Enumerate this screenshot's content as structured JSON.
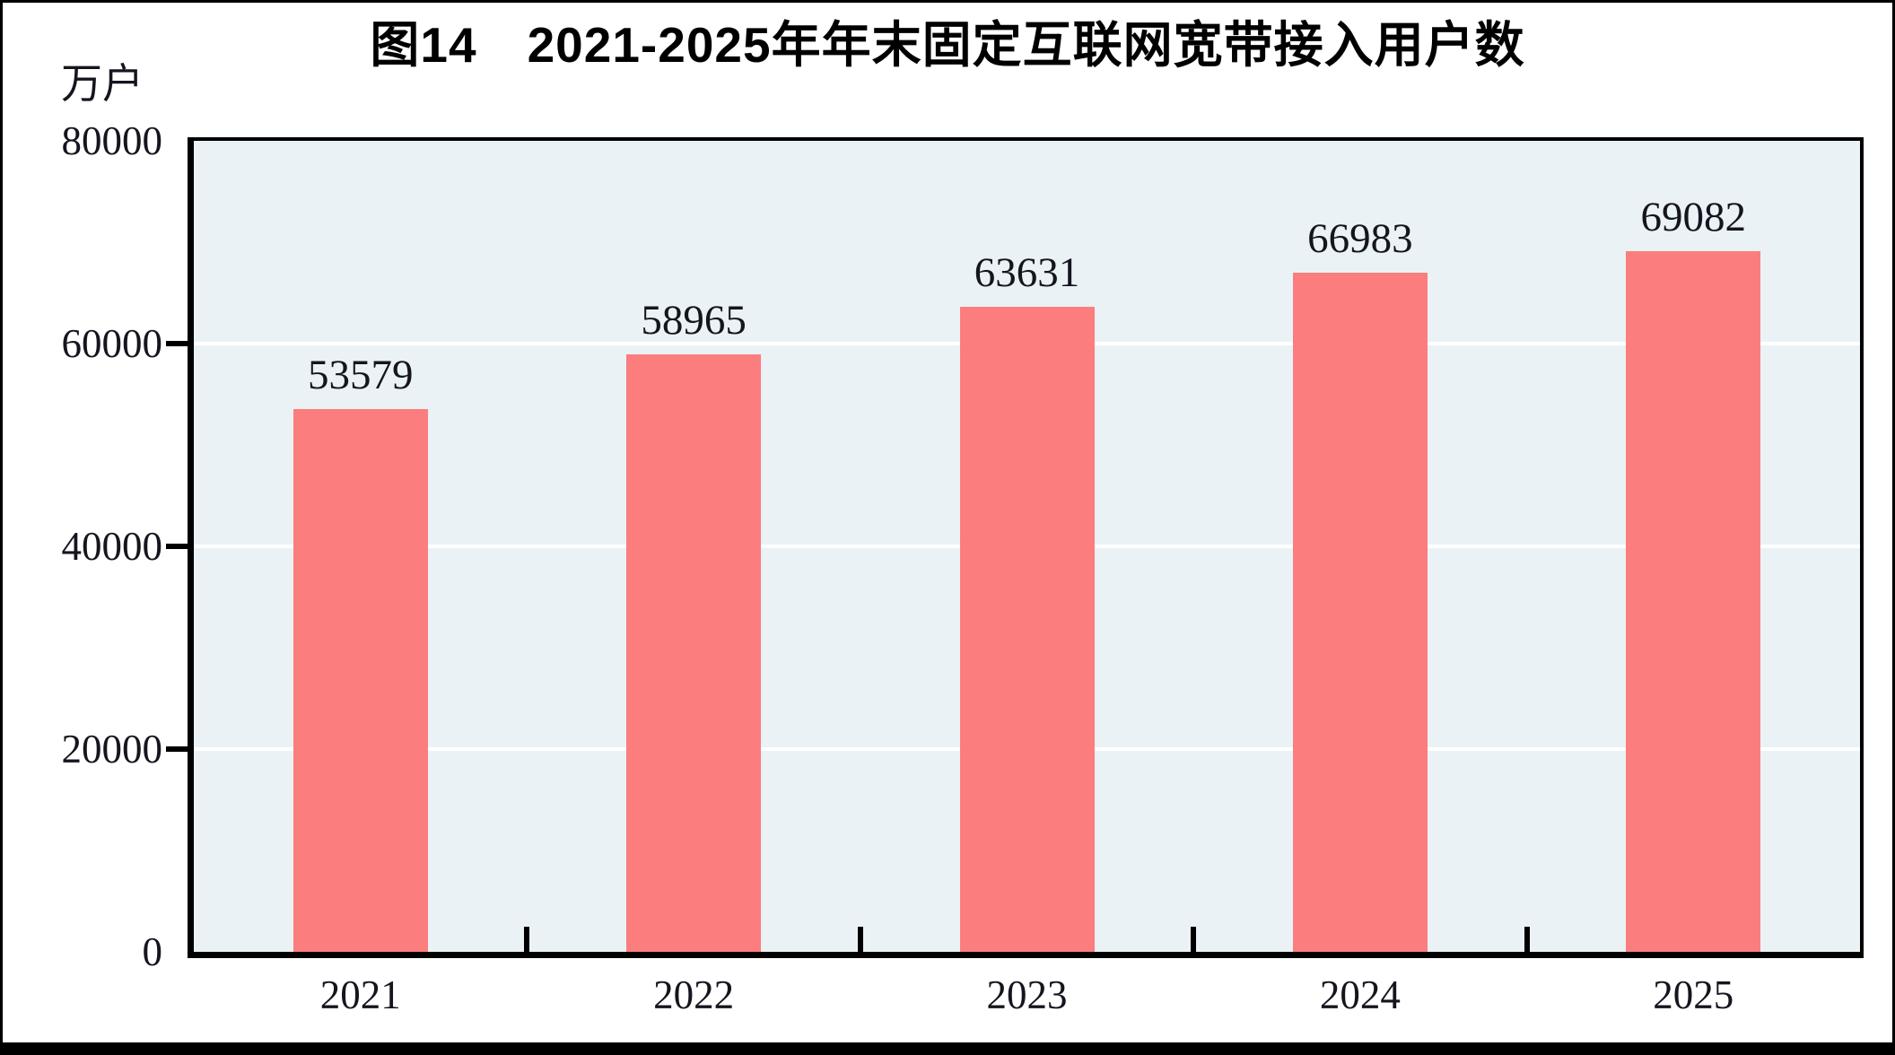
{
  "page": {
    "figure_label": "图14"
  },
  "chart_data": {
    "type": "bar",
    "title": "图14　2021-2025年年末固定互联网宽带接入用户数",
    "categories": [
      "2021",
      "2022",
      "2023",
      "2024",
      "2025"
    ],
    "values": [
      53579,
      58965,
      63631,
      66983,
      69082
    ],
    "value_labels": [
      "53579",
      "58965",
      "63631",
      "66983",
      "69082"
    ],
    "xlabel": "",
    "ylabel": "万户",
    "ylim": [
      0,
      80000
    ],
    "yticks": [
      0,
      20000,
      40000,
      60000,
      80000
    ],
    "ytick_labels": [
      "0",
      "20000",
      "40000",
      "60000",
      "80000"
    ],
    "grid": true,
    "gridline_values": [
      20000,
      40000,
      60000
    ],
    "legend": false,
    "colors": {
      "bar": "#fc7d7d",
      "plot_background": "#eaf2f6",
      "gridline": "#ffffff",
      "axis": "#000000",
      "text": "#15151f",
      "title": "#000000"
    }
  }
}
